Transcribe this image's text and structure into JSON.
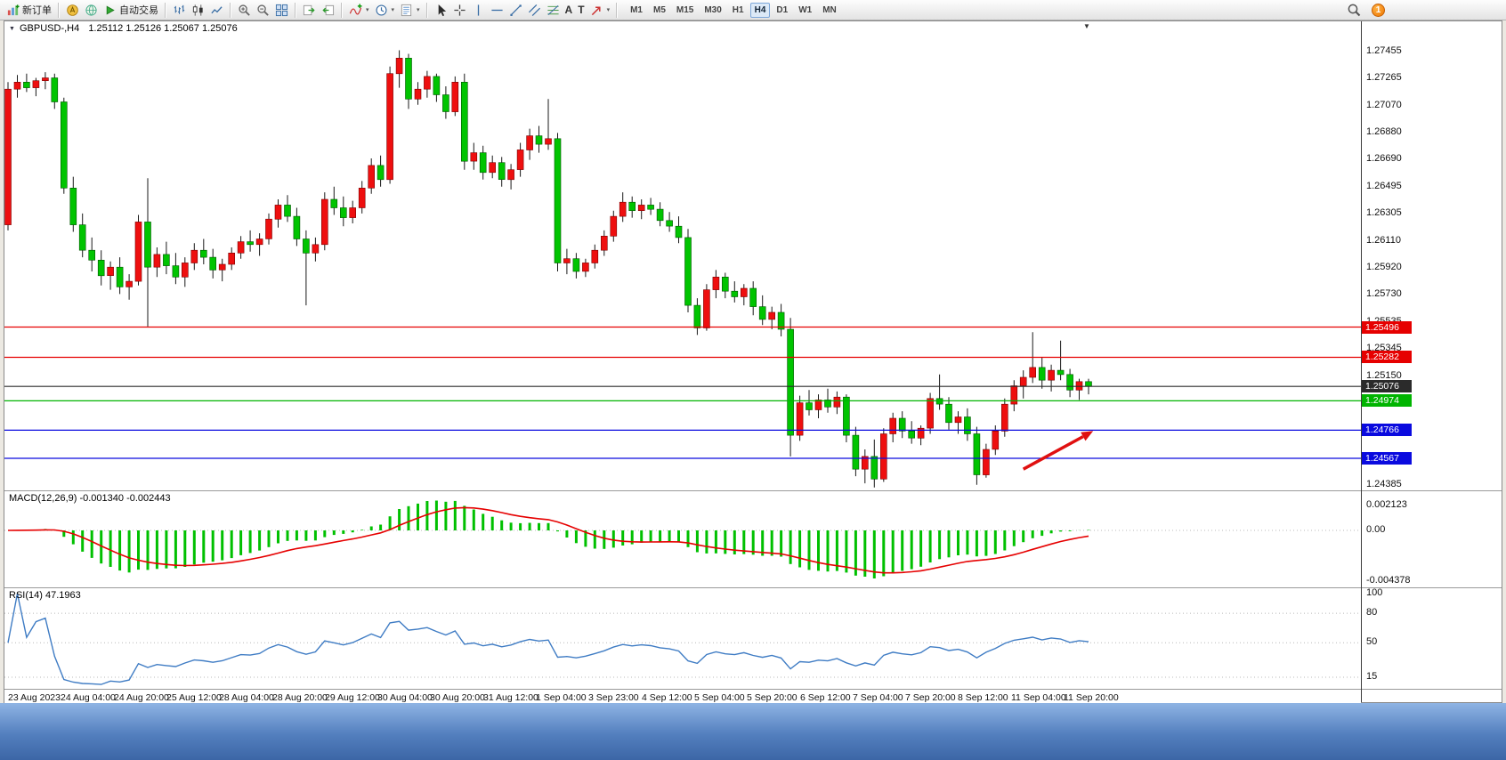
{
  "toolbar": {
    "new_order": "新订单",
    "autotrading": "自动交易",
    "text_tool_glyph": "A",
    "label_tool_glyph": "T",
    "timeframes": [
      "M1",
      "M5",
      "M15",
      "M30",
      "H1",
      "H4",
      "D1",
      "W1",
      "MN"
    ],
    "active_timeframe": "H4",
    "notification_count": "1"
  },
  "chart": {
    "title": "GBPUSD-,H4",
    "quote": "1.25112 1.25126 1.25067 1.25076",
    "macd_label": "MACD(12,26,9) -0.001340 -0.002443",
    "rsi_label": "RSI(14) 47.1963"
  },
  "chart_data": {
    "type": "candlestick",
    "symbol": "GBPUSD-",
    "timeframe": "H4",
    "ohlc_display": {
      "open": "1.25112",
      "high": "1.25126",
      "low": "1.25067",
      "close": "1.25076"
    },
    "up_color": "#ee0f0f",
    "down_color": "#00c400",
    "ylim": [
      1.2434,
      1.2766
    ],
    "price_ticks": [
      {
        "value": 1.27455,
        "label": "1.27455"
      },
      {
        "value": 1.27265,
        "label": "1.27265"
      },
      {
        "value": 1.2707,
        "label": "1.27070"
      },
      {
        "value": 1.2688,
        "label": "1.26880"
      },
      {
        "value": 1.2669,
        "label": "1.26690"
      },
      {
        "value": 1.26495,
        "label": "1.26495"
      },
      {
        "value": 1.26305,
        "label": "1.26305"
      },
      {
        "value": 1.2611,
        "label": "1.26110"
      },
      {
        "value": 1.2592,
        "label": "1.25920"
      },
      {
        "value": 1.2573,
        "label": "1.25730"
      },
      {
        "value": 1.25535,
        "label": "1.25535"
      },
      {
        "value": 1.25345,
        "label": "1.25345"
      },
      {
        "value": 1.2515,
        "label": "1.25150"
      },
      {
        "value": 1.24385,
        "label": "1.24385"
      }
    ],
    "levels": [
      {
        "price": 1.25496,
        "label": "1.25496",
        "color": "#e60000"
      },
      {
        "price": 1.25282,
        "label": "1.25282",
        "color": "#e60000"
      },
      {
        "price": 1.25076,
        "label": "1.25076",
        "color": "#2b2b2b"
      },
      {
        "price": 1.24974,
        "label": "1.24974",
        "color": "#00b400"
      },
      {
        "price": 1.24766,
        "label": "1.24766",
        "color": "#0a0adf"
      },
      {
        "price": 1.24567,
        "label": "1.24567",
        "color": "#0a0adf"
      }
    ],
    "candles": [
      [
        1.2622,
        1.2723,
        1.2618,
        1.2718
      ],
      [
        1.2718,
        1.2728,
        1.2712,
        1.2723
      ],
      [
        1.2723,
        1.2729,
        1.2716,
        1.2719
      ],
      [
        1.2719,
        1.2726,
        1.2713,
        1.2724
      ],
      [
        1.2724,
        1.273,
        1.2718,
        1.2726
      ],
      [
        1.2726,
        1.2729,
        1.2704,
        1.2709
      ],
      [
        1.2709,
        1.2712,
        1.2644,
        1.2648
      ],
      [
        1.2648,
        1.2656,
        1.2617,
        1.2622
      ],
      [
        1.2622,
        1.263,
        1.2599,
        1.2604
      ],
      [
        1.2604,
        1.2613,
        1.2589,
        1.2597
      ],
      [
        1.2597,
        1.2604,
        1.2579,
        1.2586
      ],
      [
        1.2586,
        1.2596,
        1.2576,
        1.2592
      ],
      [
        1.2592,
        1.2599,
        1.2573,
        1.2578
      ],
      [
        1.2578,
        1.2587,
        1.2569,
        1.2582
      ],
      [
        1.2582,
        1.2629,
        1.2579,
        1.2624
      ],
      [
        1.2624,
        1.2655,
        1.255,
        1.2592
      ],
      [
        1.2592,
        1.2606,
        1.2585,
        1.2601
      ],
      [
        1.2601,
        1.261,
        1.2587,
        1.2593
      ],
      [
        1.2593,
        1.2602,
        1.258,
        1.2585
      ],
      [
        1.2585,
        1.2599,
        1.2578,
        1.2595
      ],
      [
        1.2595,
        1.2609,
        1.259,
        1.2604
      ],
      [
        1.2604,
        1.2612,
        1.2594,
        1.2599
      ],
      [
        1.2599,
        1.2605,
        1.2584,
        1.259
      ],
      [
        1.259,
        1.2598,
        1.2582,
        1.2594
      ],
      [
        1.2594,
        1.2606,
        1.259,
        1.2602
      ],
      [
        1.2602,
        1.2614,
        1.2598,
        1.261
      ],
      [
        1.261,
        1.2618,
        1.2603,
        1.2608
      ],
      [
        1.2608,
        1.2616,
        1.26,
        1.2612
      ],
      [
        1.2612,
        1.263,
        1.2608,
        1.2626
      ],
      [
        1.2626,
        1.264,
        1.262,
        1.2636
      ],
      [
        1.2636,
        1.2643,
        1.2624,
        1.2628
      ],
      [
        1.2628,
        1.2634,
        1.2607,
        1.2612
      ],
      [
        1.2612,
        1.2618,
        1.2565,
        1.2602
      ],
      [
        1.2602,
        1.2613,
        1.2596,
        1.2608
      ],
      [
        1.2608,
        1.2645,
        1.2604,
        1.264
      ],
      [
        1.264,
        1.2649,
        1.2629,
        1.2634
      ],
      [
        1.2634,
        1.2642,
        1.2621,
        1.2627
      ],
      [
        1.2627,
        1.2639,
        1.2623,
        1.2634
      ],
      [
        1.2634,
        1.2653,
        1.263,
        1.2648
      ],
      [
        1.2648,
        1.2669,
        1.2644,
        1.2664
      ],
      [
        1.2664,
        1.2671,
        1.2649,
        1.2654
      ],
      [
        1.2654,
        1.2734,
        1.2651,
        1.2729
      ],
      [
        1.2729,
        1.27455,
        1.2719,
        1.274
      ],
      [
        1.274,
        1.2743,
        1.2704,
        1.2711
      ],
      [
        1.2711,
        1.2723,
        1.2707,
        1.2718
      ],
      [
        1.2718,
        1.2731,
        1.2712,
        1.2727
      ],
      [
        1.2727,
        1.2729,
        1.2709,
        1.2714
      ],
      [
        1.2714,
        1.272,
        1.2697,
        1.2702
      ],
      [
        1.2702,
        1.2727,
        1.2699,
        1.2723
      ],
      [
        1.2723,
        1.2729,
        1.2661,
        1.2667
      ],
      [
        1.2667,
        1.268,
        1.2661,
        1.2673
      ],
      [
        1.2673,
        1.2678,
        1.2654,
        1.2659
      ],
      [
        1.2659,
        1.2671,
        1.2655,
        1.2666
      ],
      [
        1.2666,
        1.267,
        1.2649,
        1.2654
      ],
      [
        1.2654,
        1.2665,
        1.2647,
        1.2661
      ],
      [
        1.2661,
        1.268,
        1.2656,
        1.2675
      ],
      [
        1.2675,
        1.269,
        1.2668,
        1.2685
      ],
      [
        1.2685,
        1.2692,
        1.2673,
        1.2679
      ],
      [
        1.2679,
        1.2711,
        1.2675,
        1.2683
      ],
      [
        1.2683,
        1.2687,
        1.2589,
        1.2595
      ],
      [
        1.2595,
        1.2605,
        1.2587,
        1.2598
      ],
      [
        1.2598,
        1.2602,
        1.2584,
        1.2589
      ],
      [
        1.2589,
        1.2598,
        1.2585,
        1.2595
      ],
      [
        1.2595,
        1.2608,
        1.2591,
        1.2604
      ],
      [
        1.2604,
        1.2618,
        1.26,
        1.2614
      ],
      [
        1.2614,
        1.2632,
        1.261,
        1.2628
      ],
      [
        1.2628,
        1.2645,
        1.2624,
        1.2638
      ],
      [
        1.2638,
        1.2642,
        1.2627,
        1.2632
      ],
      [
        1.2632,
        1.264,
        1.2626,
        1.2636
      ],
      [
        1.2636,
        1.2641,
        1.2629,
        1.2633
      ],
      [
        1.2633,
        1.2638,
        1.2621,
        1.2625
      ],
      [
        1.2625,
        1.2631,
        1.2617,
        1.2621
      ],
      [
        1.2621,
        1.2628,
        1.2609,
        1.2613
      ],
      [
        1.2613,
        1.2619,
        1.256,
        1.2565
      ],
      [
        1.2565,
        1.257,
        1.2544,
        1.2549
      ],
      [
        1.2549,
        1.258,
        1.2547,
        1.2576
      ],
      [
        1.2576,
        1.259,
        1.257,
        1.2585
      ],
      [
        1.2585,
        1.2588,
        1.257,
        1.2575
      ],
      [
        1.2575,
        1.2582,
        1.2567,
        1.2571
      ],
      [
        1.2571,
        1.258,
        1.2565,
        1.2577
      ],
      [
        1.2577,
        1.2582,
        1.2558,
        1.2564
      ],
      [
        1.2564,
        1.2572,
        1.2551,
        1.2555
      ],
      [
        1.2555,
        1.2564,
        1.2548,
        1.256
      ],
      [
        1.256,
        1.2566,
        1.2543,
        1.2548
      ],
      [
        1.2548,
        1.2556,
        1.2458,
        1.2473
      ],
      [
        1.2473,
        1.2501,
        1.2469,
        1.2496
      ],
      [
        1.2496,
        1.2505,
        1.2487,
        1.2491
      ],
      [
        1.2491,
        1.2502,
        1.2485,
        1.2498
      ],
      [
        1.2498,
        1.2506,
        1.2489,
        1.2493
      ],
      [
        1.2493,
        1.2504,
        1.2488,
        1.25
      ],
      [
        1.25,
        1.2502,
        1.2468,
        1.2473
      ],
      [
        1.2473,
        1.2479,
        1.2444,
        1.2449
      ],
      [
        1.2449,
        1.2463,
        1.2439,
        1.2458
      ],
      [
        1.2458,
        1.247,
        1.2436,
        1.2442
      ],
      [
        1.2442,
        1.2478,
        1.244,
        1.2474
      ],
      [
        1.2474,
        1.2489,
        1.2468,
        1.2485
      ],
      [
        1.2485,
        1.249,
        1.2471,
        1.2476
      ],
      [
        1.2476,
        1.2483,
        1.2467,
        1.2471
      ],
      [
        1.2471,
        1.248,
        1.2466,
        1.2478
      ],
      [
        1.2478,
        1.2503,
        1.2474,
        1.2499
      ],
      [
        1.2499,
        1.2516,
        1.2491,
        1.2495
      ],
      [
        1.2495,
        1.25,
        1.2477,
        1.2482
      ],
      [
        1.2482,
        1.249,
        1.2474,
        1.2486
      ],
      [
        1.2486,
        1.2492,
        1.2469,
        1.2474
      ],
      [
        1.2474,
        1.2479,
        1.2438,
        1.2445
      ],
      [
        1.2445,
        1.2467,
        1.2443,
        1.2463
      ],
      [
        1.2463,
        1.248,
        1.2459,
        1.2476
      ],
      [
        1.2476,
        1.2499,
        1.2472,
        1.2495
      ],
      [
        1.2495,
        1.2512,
        1.249,
        1.2508
      ],
      [
        1.2508,
        1.2519,
        1.2499,
        1.2514
      ],
      [
        1.2514,
        1.2546,
        1.251,
        1.2521
      ],
      [
        1.2521,
        1.2528,
        1.2506,
        1.2512
      ],
      [
        1.2512,
        1.2523,
        1.2504,
        1.2519
      ],
      [
        1.2519,
        1.254,
        1.2512,
        1.2516
      ],
      [
        1.2516,
        1.252,
        1.25,
        1.2505
      ],
      [
        1.2505,
        1.2513,
        1.2498,
        1.2511
      ],
      [
        1.2511,
        1.2513,
        1.2502,
        1.25076
      ]
    ],
    "time_labels": [
      "23 Aug 2023",
      "24 Aug 04:00",
      "24 Aug 20:00",
      "25 Aug 12:00",
      "28 Aug 04:00",
      "28 Aug 20:00",
      "29 Aug 12:00",
      "30 Aug 04:00",
      "30 Aug 20:00",
      "31 Aug 12:00",
      "1 Sep 04:00",
      "3 Sep 23:00",
      "4 Sep 12:00",
      "5 Sep 04:00",
      "5 Sep 20:00",
      "6 Sep 12:00",
      "7 Sep 04:00",
      "7 Sep 20:00",
      "8 Sep 12:00",
      "11 Sep 04:00",
      "11 Sep 20:00"
    ],
    "macd": {
      "label": "MACD(12,26,9)",
      "values_text": "-0.001340 -0.002443",
      "fast": 12,
      "slow": 26,
      "signal": 9,
      "ylim": [
        -0.00496,
        0.00336
      ],
      "ticks": [
        {
          "value": 0.002123,
          "label": "0.002123"
        },
        {
          "value": 0,
          "label": "0.00"
        },
        {
          "value": -0.004378,
          "label": "-0.004378"
        }
      ],
      "histogram_color": "#00c000",
      "signal_color": "#e60000"
    },
    "rsi": {
      "label": "RSI(14)",
      "value_text": "47.1963",
      "period": 14,
      "line_color": "#3f7cc4",
      "levels": [
        {
          "value": 100,
          "label": "100",
          "line": false
        },
        {
          "value": 80,
          "label": "80",
          "line": true
        },
        {
          "value": 50,
          "label": "50",
          "line": true
        },
        {
          "value": 15,
          "label": "15",
          "line": true
        }
      ]
    },
    "annotation_arrow": {
      "from_index": 109,
      "from_price": 1.2449,
      "to_index": 116.5,
      "to_price": 1.2476,
      "color": "#e01010"
    }
  }
}
